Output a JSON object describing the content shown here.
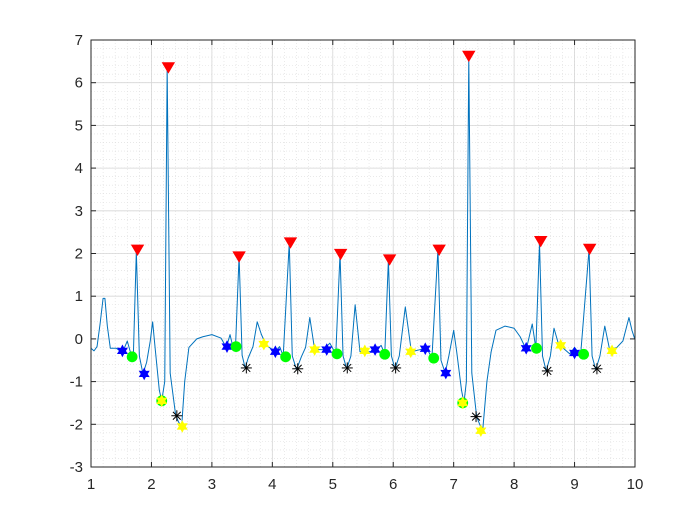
{
  "chart_data": {
    "type": "line",
    "title": "",
    "xlabel": "",
    "ylabel": "",
    "xlim": [
      1,
      10
    ],
    "ylim": [
      -3,
      7
    ],
    "xticks": [
      1,
      2,
      3,
      4,
      5,
      6,
      7,
      8,
      9,
      10
    ],
    "yticks": [
      -3,
      -2,
      -1,
      0,
      1,
      2,
      3,
      4,
      5,
      6,
      7
    ],
    "grid": true,
    "minor_grid": true,
    "line_color": "#0072BD",
    "signal_keypoints": [
      [
        1.0,
        -0.22
      ],
      [
        1.05,
        -0.28
      ],
      [
        1.1,
        -0.18
      ],
      [
        1.15,
        0.35
      ],
      [
        1.2,
        0.95
      ],
      [
        1.23,
        0.95
      ],
      [
        1.27,
        0.3
      ],
      [
        1.32,
        -0.22
      ],
      [
        1.42,
        -0.22
      ],
      [
        1.52,
        -0.32
      ],
      [
        1.6,
        -0.05
      ],
      [
        1.65,
        -0.3
      ],
      [
        1.7,
        -0.42
      ],
      [
        1.75,
        2.05
      ],
      [
        1.8,
        -0.4
      ],
      [
        1.86,
        -0.82
      ],
      [
        1.92,
        -0.55
      ],
      [
        1.98,
        -0.05
      ],
      [
        2.02,
        0.4
      ],
      [
        2.06,
        -0.2
      ],
      [
        2.13,
        -1.2
      ],
      [
        2.17,
        -1.45
      ],
      [
        2.22,
        -1.0
      ],
      [
        2.26,
        6.35
      ],
      [
        2.31,
        -0.8
      ],
      [
        2.4,
        -1.78
      ],
      [
        2.45,
        -1.95
      ],
      [
        2.5,
        -2.05
      ],
      [
        2.55,
        -1.0
      ],
      [
        2.62,
        -0.2
      ],
      [
        2.75,
        0.0
      ],
      [
        2.85,
        0.05
      ],
      [
        3.0,
        0.1
      ],
      [
        3.15,
        0.02
      ],
      [
        3.24,
        -0.2
      ],
      [
        3.3,
        0.1
      ],
      [
        3.35,
        -0.2
      ],
      [
        3.39,
        -0.22
      ],
      [
        3.45,
        1.95
      ],
      [
        3.5,
        -0.38
      ],
      [
        3.55,
        -0.68
      ],
      [
        3.6,
        -0.45
      ],
      [
        3.68,
        -0.18
      ],
      [
        3.75,
        0.4
      ],
      [
        3.82,
        0.1
      ],
      [
        3.9,
        -0.15
      ],
      [
        4.05,
        -0.3
      ],
      [
        4.12,
        -0.18
      ],
      [
        4.18,
        -0.4
      ],
      [
        4.28,
        2.25
      ],
      [
        4.33,
        -0.4
      ],
      [
        4.4,
        -0.72
      ],
      [
        4.48,
        -0.42
      ],
      [
        4.55,
        -0.2
      ],
      [
        4.62,
        0.5
      ],
      [
        4.7,
        -0.25
      ],
      [
        4.85,
        -0.25
      ],
      [
        4.95,
        -0.1
      ],
      [
        5.05,
        -0.35
      ],
      [
        5.12,
        2.0
      ],
      [
        5.17,
        -0.4
      ],
      [
        5.23,
        -0.7
      ],
      [
        5.3,
        -0.4
      ],
      [
        5.37,
        0.8
      ],
      [
        5.45,
        -0.3
      ],
      [
        5.6,
        -0.3
      ],
      [
        5.7,
        -0.28
      ],
      [
        5.8,
        -0.15
      ],
      [
        5.86,
        -0.36
      ],
      [
        5.92,
        1.85
      ],
      [
        5.97,
        -0.4
      ],
      [
        6.03,
        -0.7
      ],
      [
        6.1,
        -0.4
      ],
      [
        6.2,
        0.75
      ],
      [
        6.3,
        -0.3
      ],
      [
        6.45,
        -0.25
      ],
      [
        6.55,
        -0.2
      ],
      [
        6.64,
        -0.45
      ],
      [
        6.74,
        2.1
      ],
      [
        6.79,
        -0.5
      ],
      [
        6.86,
        -0.8
      ],
      [
        6.92,
        -0.4
      ],
      [
        7.0,
        0.2
      ],
      [
        7.05,
        -0.3
      ],
      [
        7.13,
        -1.2
      ],
      [
        7.17,
        -1.5
      ],
      [
        7.21,
        -1.0
      ],
      [
        7.25,
        6.6
      ],
      [
        7.3,
        -0.8
      ],
      [
        7.38,
        -1.82
      ],
      [
        7.43,
        -2.0
      ],
      [
        7.48,
        -2.15
      ],
      [
        7.55,
        -1.0
      ],
      [
        7.62,
        -0.3
      ],
      [
        7.7,
        0.2
      ],
      [
        7.85,
        0.3
      ],
      [
        8.0,
        0.25
      ],
      [
        8.1,
        0.05
      ],
      [
        8.2,
        -0.25
      ],
      [
        8.3,
        0.35
      ],
      [
        8.36,
        -0.22
      ],
      [
        8.42,
        2.25
      ],
      [
        8.47,
        -0.4
      ],
      [
        8.53,
        -0.75
      ],
      [
        8.6,
        -0.4
      ],
      [
        8.66,
        0.25
      ],
      [
        8.73,
        -0.1
      ],
      [
        8.8,
        -0.2
      ],
      [
        8.92,
        -0.35
      ],
      [
        9.0,
        -0.2
      ],
      [
        9.1,
        -0.38
      ],
      [
        9.24,
        2.1
      ],
      [
        9.29,
        -0.4
      ],
      [
        9.35,
        -0.72
      ],
      [
        9.42,
        -0.4
      ],
      [
        9.5,
        0.3
      ],
      [
        9.58,
        -0.25
      ],
      [
        9.7,
        -0.2
      ],
      [
        9.8,
        -0.05
      ],
      [
        9.9,
        0.5
      ],
      [
        9.95,
        0.2
      ],
      [
        10.0,
        -0.02
      ]
    ],
    "marker_series": [
      {
        "marker": "triangle-down",
        "color": "#FF0000",
        "points": [
          [
            1.77,
            2.08
          ],
          [
            2.28,
            6.35
          ],
          [
            3.45,
            1.92
          ],
          [
            4.3,
            2.25
          ],
          [
            5.13,
            1.98
          ],
          [
            5.94,
            1.85
          ],
          [
            6.76,
            2.08
          ],
          [
            7.25,
            6.62
          ],
          [
            8.44,
            2.28
          ],
          [
            9.25,
            2.1
          ]
        ]
      },
      {
        "marker": "hexagram",
        "color": "#0000FF",
        "points": [
          [
            1.52,
            -0.28
          ],
          [
            1.88,
            -0.82
          ],
          [
            3.25,
            -0.18
          ],
          [
            4.05,
            -0.3
          ],
          [
            4.9,
            -0.25
          ],
          [
            5.7,
            -0.25
          ],
          [
            6.53,
            -0.23
          ],
          [
            6.87,
            -0.8
          ],
          [
            8.2,
            -0.22
          ],
          [
            9.0,
            -0.33
          ]
        ]
      },
      {
        "marker": "circle",
        "color": "#00FF00",
        "points": [
          [
            1.68,
            -0.42
          ],
          [
            2.17,
            -1.45
          ],
          [
            3.4,
            -0.18
          ],
          [
            4.22,
            -0.42
          ],
          [
            5.07,
            -0.35
          ],
          [
            5.86,
            -0.36
          ],
          [
            6.67,
            -0.45
          ],
          [
            7.15,
            -1.5
          ],
          [
            8.37,
            -0.22
          ],
          [
            9.15,
            -0.36
          ]
        ]
      },
      {
        "marker": "hexagram",
        "color": "#FFFF00",
        "points": [
          [
            2.17,
            -1.45
          ],
          [
            2.51,
            -2.05
          ],
          [
            3.86,
            -0.12
          ],
          [
            4.7,
            -0.25
          ],
          [
            5.53,
            -0.28
          ],
          [
            6.29,
            -0.3
          ],
          [
            7.15,
            -1.5
          ],
          [
            7.45,
            -2.15
          ],
          [
            8.77,
            -0.15
          ],
          [
            9.62,
            -0.28
          ]
        ]
      },
      {
        "marker": "asterisk",
        "color": "#000000",
        "points": [
          [
            2.42,
            -1.8
          ],
          [
            3.57,
            -0.68
          ],
          [
            4.42,
            -0.7
          ],
          [
            5.24,
            -0.68
          ],
          [
            6.04,
            -0.68
          ],
          [
            7.37,
            -1.82
          ],
          [
            8.55,
            -0.75
          ],
          [
            9.37,
            -0.7
          ]
        ]
      }
    ]
  }
}
